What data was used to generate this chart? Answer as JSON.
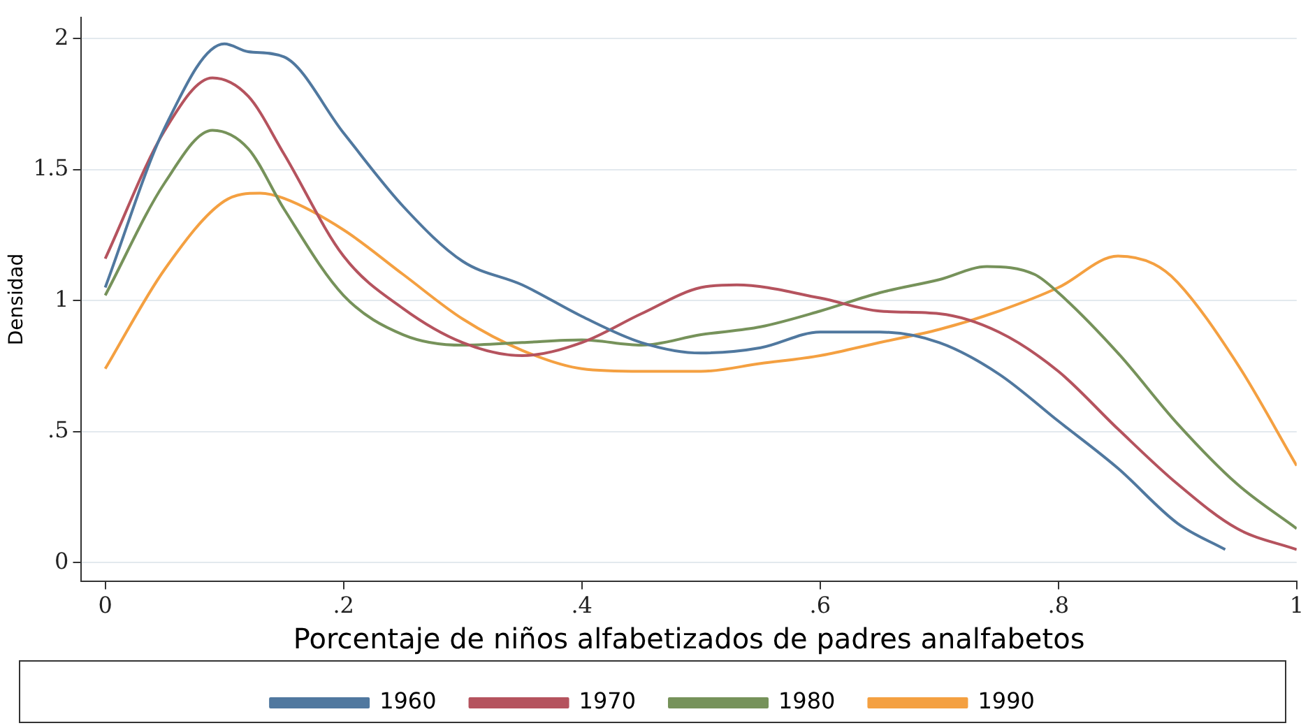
{
  "chart_data": {
    "type": "line",
    "xlabel": "Porcentaje de niños alfabetizados de padres analfabetos",
    "ylabel": "Densidad",
    "xlim": [
      -0.02,
      1.0
    ],
    "ylim": [
      -0.07,
      2.08
    ],
    "xticks": [
      {
        "value": 0,
        "label": "0"
      },
      {
        "value": 0.2,
        "label": ".2"
      },
      {
        "value": 0.4,
        "label": ".4"
      },
      {
        "value": 0.6,
        "label": ".6"
      },
      {
        "value": 0.8,
        "label": ".8"
      },
      {
        "value": 1,
        "label": "1"
      }
    ],
    "yticks": [
      {
        "value": 0,
        "label": "0"
      },
      {
        "value": 0.5,
        "label": ".5"
      },
      {
        "value": 1,
        "label": "1"
      },
      {
        "value": 1.5,
        "label": "1.5"
      },
      {
        "value": 2,
        "label": "2"
      }
    ],
    "grid": "y",
    "legend": "bottom",
    "marker": "none",
    "line_style": "solid",
    "series": [
      {
        "name": "1960",
        "color": "#50789f",
        "x": [
          0,
          0.05,
          0.1,
          0.12,
          0.15,
          0.2,
          0.25,
          0.3,
          0.35,
          0.4,
          0.45,
          0.5,
          0.55,
          0.6,
          0.65,
          0.7,
          0.75,
          0.8,
          0.85,
          0.9,
          0.94
        ],
        "values": [
          1.05,
          1.66,
          1.98,
          1.95,
          1.93,
          1.64,
          1.36,
          1.15,
          1.06,
          0.94,
          0.84,
          0.8,
          0.82,
          0.88,
          0.88,
          0.84,
          0.72,
          0.54,
          0.36,
          0.15,
          0.05
        ]
      },
      {
        "name": "1970",
        "color": "#b5535e",
        "x": [
          0,
          0.05,
          0.09,
          0.12,
          0.15,
          0.2,
          0.25,
          0.3,
          0.35,
          0.4,
          0.45,
          0.5,
          0.53,
          0.6,
          0.65,
          0.7,
          0.75,
          0.8,
          0.85,
          0.9,
          0.95,
          1.0
        ],
        "values": [
          1.16,
          1.65,
          1.85,
          1.78,
          1.56,
          1.17,
          0.97,
          0.84,
          0.79,
          0.84,
          0.95,
          1.05,
          1.06,
          1.01,
          0.96,
          0.95,
          0.88,
          0.73,
          0.51,
          0.3,
          0.13,
          0.05
        ]
      },
      {
        "name": "1980",
        "color": "#76925a",
        "x": [
          0,
          0.05,
          0.09,
          0.12,
          0.15,
          0.2,
          0.25,
          0.3,
          0.35,
          0.4,
          0.45,
          0.5,
          0.55,
          0.6,
          0.65,
          0.7,
          0.74,
          0.78,
          0.8,
          0.85,
          0.9,
          0.95,
          1.0
        ],
        "values": [
          1.02,
          1.45,
          1.65,
          1.58,
          1.35,
          1.02,
          0.87,
          0.83,
          0.84,
          0.85,
          0.83,
          0.87,
          0.9,
          0.96,
          1.03,
          1.08,
          1.13,
          1.1,
          1.03,
          0.8,
          0.53,
          0.3,
          0.13
        ]
      },
      {
        "name": "1990",
        "color": "#f4a041",
        "x": [
          0,
          0.05,
          0.1,
          0.13,
          0.15,
          0.2,
          0.25,
          0.3,
          0.35,
          0.4,
          0.45,
          0.5,
          0.55,
          0.6,
          0.65,
          0.7,
          0.75,
          0.8,
          0.85,
          0.88,
          0.9,
          0.95,
          1.0
        ],
        "values": [
          0.74,
          1.12,
          1.38,
          1.41,
          1.39,
          1.27,
          1.1,
          0.93,
          0.81,
          0.74,
          0.73,
          0.73,
          0.76,
          0.79,
          0.84,
          0.89,
          0.96,
          1.05,
          1.17,
          1.14,
          1.07,
          0.76,
          0.37
        ]
      }
    ]
  }
}
